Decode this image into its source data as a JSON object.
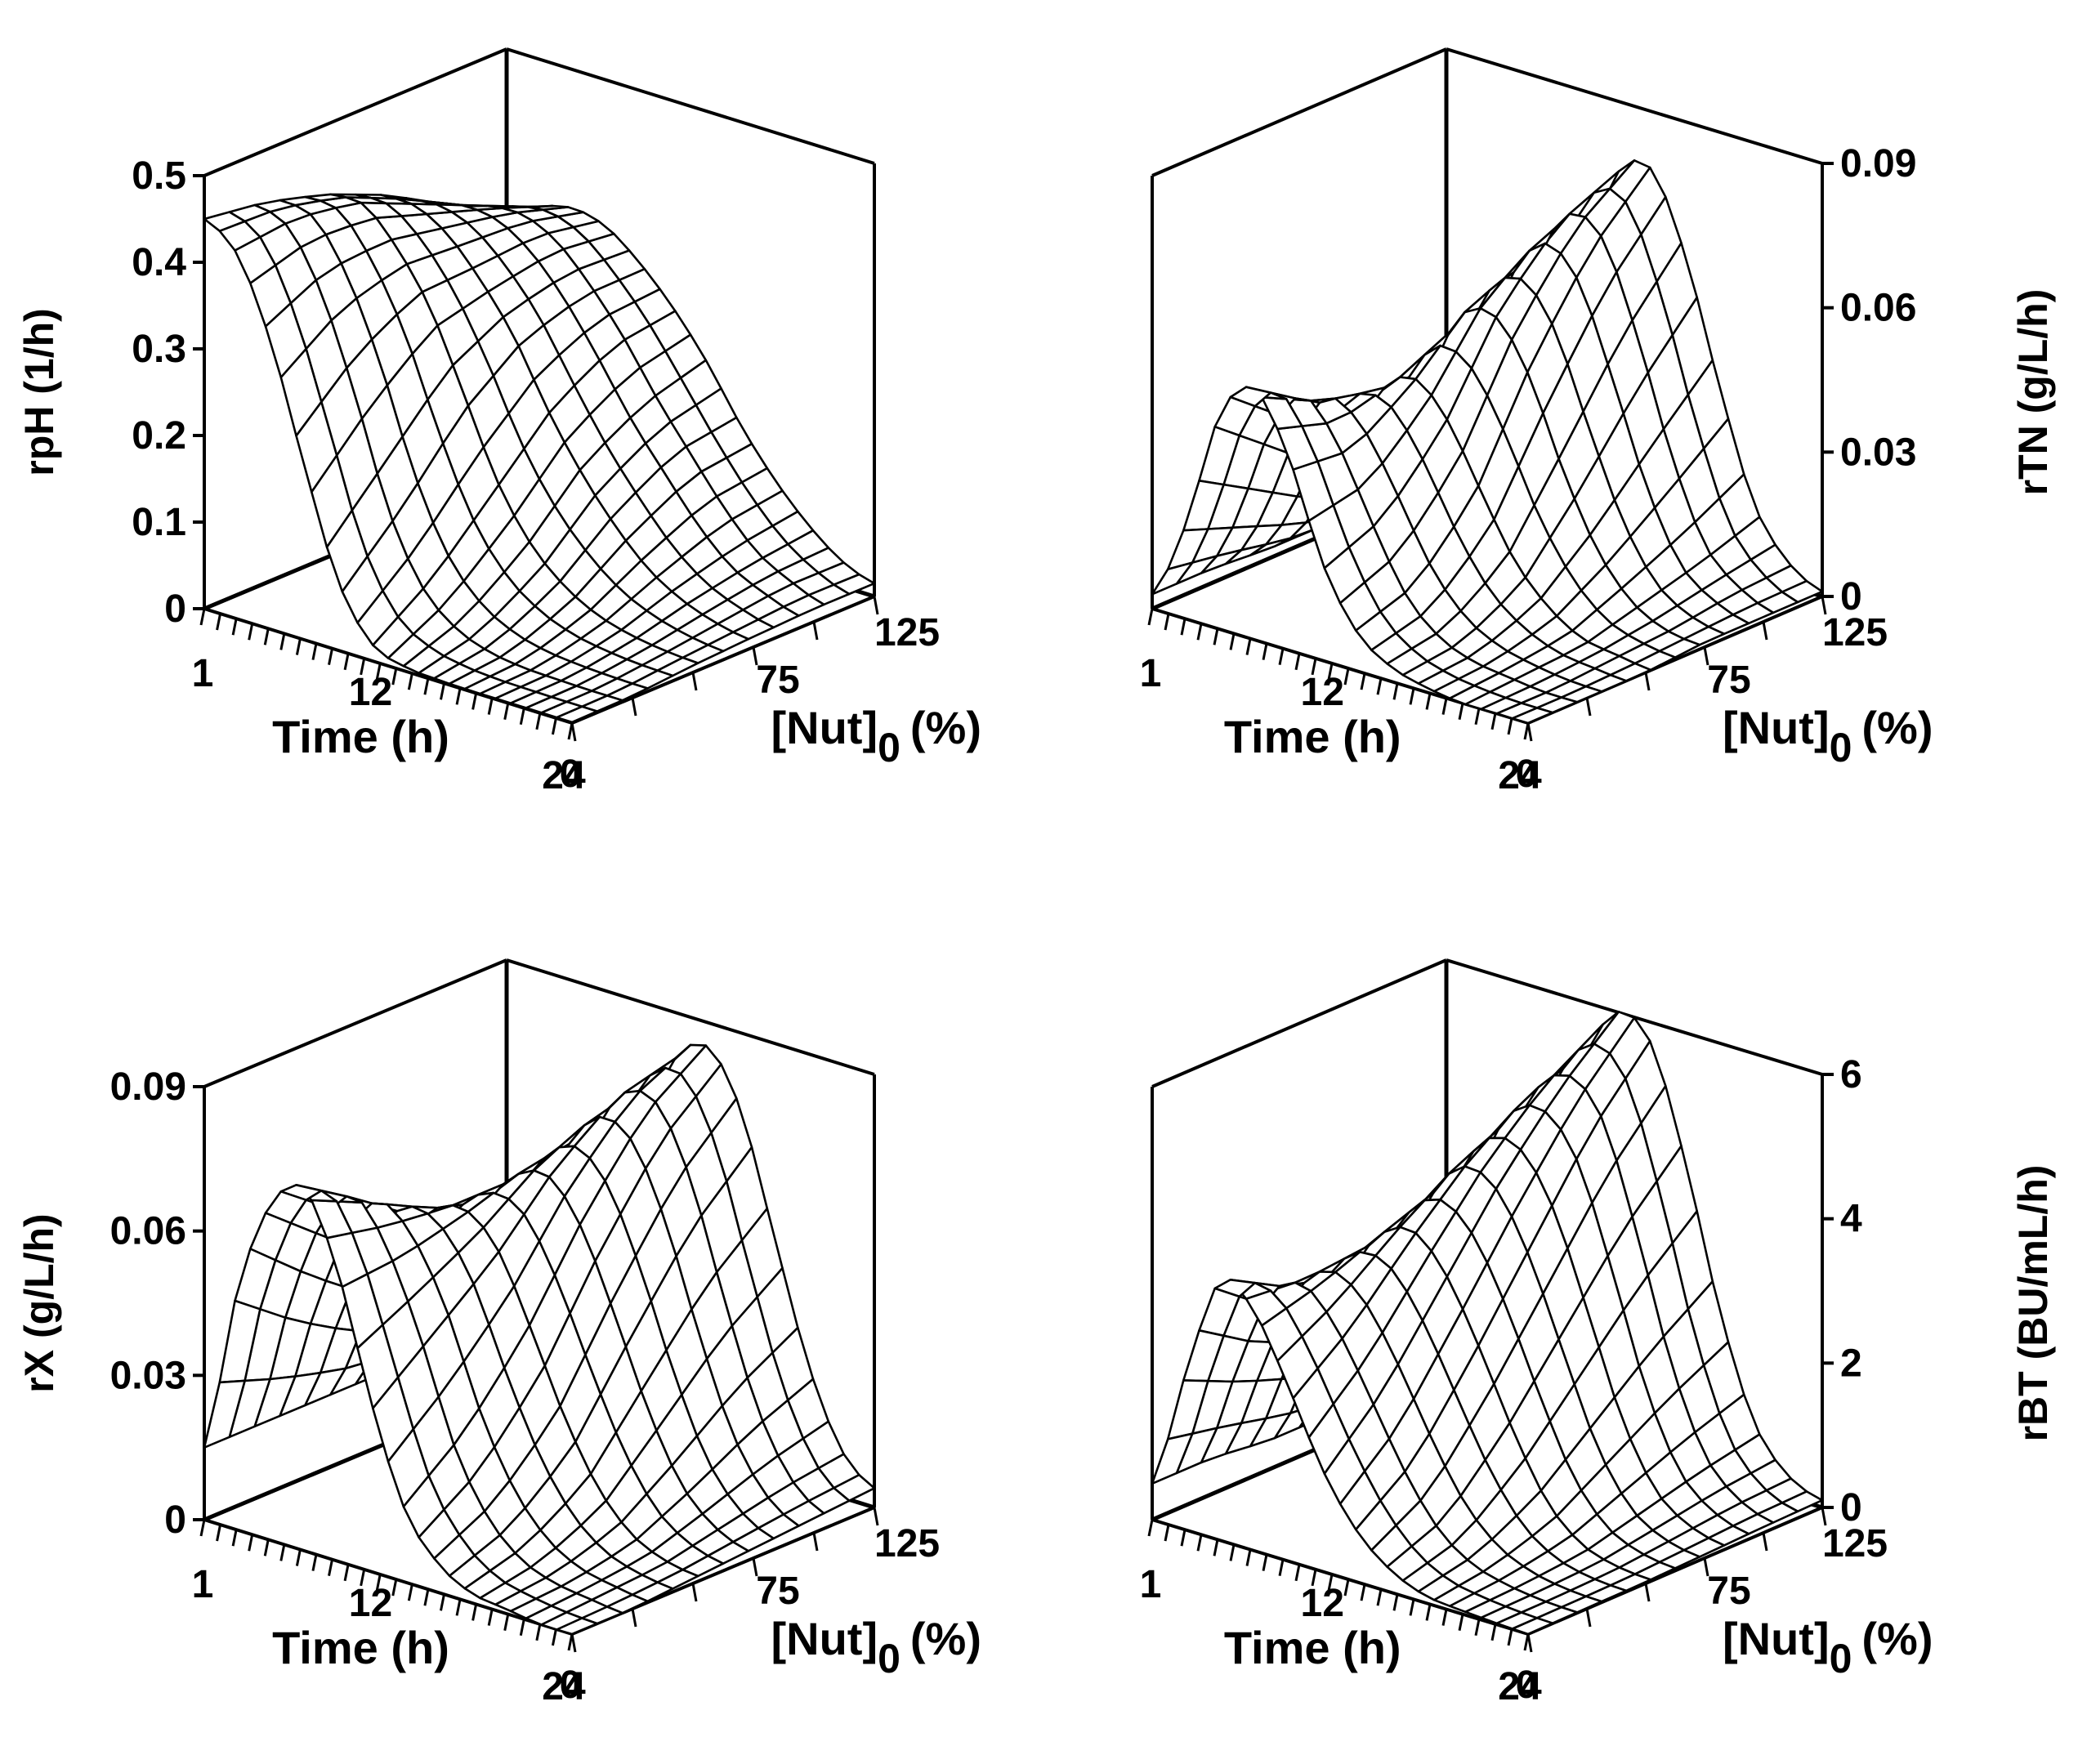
{
  "chart_data": [
    {
      "type": "surface3d",
      "id": "rph",
      "zlabel": "rpH (1/h)",
      "zlabel_side": "left",
      "ztick_side": "left",
      "zlim": [
        0,
        0.5
      ],
      "zticks": [
        "0",
        "0.1",
        "0.2",
        "0.3",
        "0.4",
        "0.5"
      ],
      "xlabel": "Time (h)",
      "xlim": [
        1,
        24
      ],
      "xtick_labels": [
        "1",
        "12",
        "24"
      ],
      "ylabel_main": "[Nut]",
      "ylabel_sub": "0",
      "ylabel_tail": "(%)",
      "ylim": [
        0,
        125
      ],
      "ytick_labels": [
        "0",
        "75",
        "125"
      ],
      "surface": {
        "rows": [
          {
            "nut": 0,
            "values": [
              0.45,
              0.42,
              0.33,
              0.2,
              0.08,
              0.02,
              0.005,
              0.002,
              0.001,
              0.001,
              0.001,
              0.001
            ]
          },
          {
            "nut": 25,
            "values": [
              0.44,
              0.43,
              0.37,
              0.27,
              0.15,
              0.07,
              0.03,
              0.012,
              0.005,
              0.003,
              0.002,
              0.002
            ]
          },
          {
            "nut": 50,
            "values": [
              0.42,
              0.42,
              0.38,
              0.32,
              0.23,
              0.14,
              0.08,
              0.045,
              0.025,
              0.015,
              0.01,
              0.008
            ]
          },
          {
            "nut": 75,
            "values": [
              0.39,
              0.39,
              0.37,
              0.33,
              0.28,
              0.21,
              0.15,
              0.1,
              0.06,
              0.035,
              0.02,
              0.012
            ]
          },
          {
            "nut": 100,
            "values": [
              0.35,
              0.36,
              0.36,
              0.34,
              0.3,
              0.25,
              0.19,
              0.14,
              0.09,
              0.05,
              0.03,
              0.015
            ]
          },
          {
            "nut": 125,
            "values": [
              0.31,
              0.33,
              0.34,
              0.33,
              0.3,
              0.26,
              0.21,
              0.15,
              0.1,
              0.06,
              0.03,
              0.015
            ]
          }
        ]
      }
    },
    {
      "type": "surface3d",
      "id": "rtn",
      "zlabel": "rTN (g/L/h)",
      "zlabel_side": "right",
      "ztick_side": "right",
      "zlim": [
        0,
        0.09
      ],
      "zticks": [
        "0",
        "0.03",
        "0.06",
        "0.09"
      ],
      "xlabel": "Time (h)",
      "xlim": [
        1,
        24
      ],
      "xtick_labels": [
        "1",
        "12",
        "24"
      ],
      "ylabel_main": "[Nut]",
      "ylabel_sub": "0",
      "ylabel_tail": "(%)",
      "ylim": [
        0,
        125
      ],
      "ytick_labels": [
        "0",
        "75",
        "125"
      ],
      "surface": {
        "rows": [
          {
            "nut": 0,
            "values": [
              0.003,
              0.02,
              0.045,
              0.052,
              0.04,
              0.02,
              0.008,
              0.003,
              0.001,
              0.0,
              0.0,
              0.0
            ]
          },
          {
            "nut": 25,
            "values": [
              0.003,
              0.015,
              0.035,
              0.045,
              0.038,
              0.025,
              0.012,
              0.005,
              0.002,
              0.001,
              0.0,
              0.0
            ]
          },
          {
            "nut": 50,
            "values": [
              0.002,
              0.01,
              0.025,
              0.04,
              0.045,
              0.038,
              0.025,
              0.013,
              0.006,
              0.002,
              0.001,
              0.0
            ]
          },
          {
            "nut": 75,
            "values": [
              0.002,
              0.008,
              0.02,
              0.038,
              0.055,
              0.058,
              0.048,
              0.03,
              0.015,
              0.006,
              0.002,
              0.001
            ]
          },
          {
            "nut": 100,
            "values": [
              0.002,
              0.007,
              0.018,
              0.036,
              0.058,
              0.07,
              0.066,
              0.048,
              0.026,
              0.01,
              0.004,
              0.001
            ]
          },
          {
            "nut": 125,
            "values": [
              0.002,
              0.006,
              0.015,
              0.032,
              0.055,
              0.075,
              0.078,
              0.062,
              0.037,
              0.015,
              0.005,
              0.001
            ]
          }
        ]
      }
    },
    {
      "type": "surface3d",
      "id": "rx",
      "zlabel": "rX (g/L/h)",
      "zlabel_side": "left",
      "ztick_side": "left",
      "zlim": [
        0,
        0.09
      ],
      "zticks": [
        "0",
        "0.03",
        "0.06",
        "0.09"
      ],
      "xlabel": "Time (h)",
      "xlim": [
        1,
        24
      ],
      "xtick_labels": [
        "1",
        "12",
        "24"
      ],
      "ylabel_main": "[Nut]",
      "ylabel_sub": "0",
      "ylabel_tail": "(%)",
      "ylim": [
        0,
        125
      ],
      "ytick_labels": [
        "0",
        "75",
        "125"
      ],
      "surface": {
        "rows": [
          {
            "nut": 0,
            "values": [
              0.015,
              0.05,
              0.07,
              0.075,
              0.06,
              0.035,
              0.015,
              0.006,
              0.002,
              0.001,
              0.0,
              0.0
            ]
          },
          {
            "nut": 25,
            "values": [
              0.015,
              0.04,
              0.06,
              0.068,
              0.06,
              0.045,
              0.025,
              0.012,
              0.005,
              0.002,
              0.001,
              0.0
            ]
          },
          {
            "nut": 50,
            "values": [
              0.015,
              0.032,
              0.05,
              0.06,
              0.062,
              0.055,
              0.04,
              0.024,
              0.012,
              0.005,
              0.002,
              0.001
            ]
          },
          {
            "nut": 75,
            "values": [
              0.015,
              0.028,
              0.042,
              0.055,
              0.065,
              0.068,
              0.06,
              0.044,
              0.026,
              0.012,
              0.005,
              0.002
            ]
          },
          {
            "nut": 100,
            "values": [
              0.015,
              0.025,
              0.038,
              0.05,
              0.066,
              0.077,
              0.076,
              0.062,
              0.04,
              0.02,
              0.008,
              0.003
            ]
          },
          {
            "nut": 125,
            "values": [
              0.015,
              0.022,
              0.032,
              0.045,
              0.063,
              0.08,
              0.085,
              0.074,
              0.05,
              0.026,
              0.01,
              0.004
            ]
          }
        ]
      }
    },
    {
      "type": "surface3d",
      "id": "rbt",
      "zlabel": "rBT (BU/mL/h)",
      "zlabel_side": "right",
      "ztick_side": "right",
      "zlim": [
        0,
        6
      ],
      "zticks": [
        "0",
        "2",
        "4",
        "6"
      ],
      "xlabel": "Time (h)",
      "xlim": [
        1,
        24
      ],
      "xtick_labels": [
        "1",
        "12",
        "24"
      ],
      "ylabel_main": "[Nut]",
      "ylabel_sub": "0",
      "ylabel_tail": "(%)",
      "ylim": [
        0,
        125
      ],
      "ytick_labels": [
        "0",
        "75",
        "125"
      ],
      "surface": {
        "rows": [
          {
            "nut": 0,
            "values": [
              0.5,
              2.2,
              3.6,
              3.3,
              2.4,
              1.4,
              0.7,
              0.3,
              0.1,
              0.05,
              0.02,
              0.0
            ]
          },
          {
            "nut": 25,
            "values": [
              0.5,
              1.8,
              3.0,
              3.4,
              3.0,
              2.2,
              1.3,
              0.6,
              0.25,
              0.1,
              0.03,
              0.01
            ]
          },
          {
            "nut": 50,
            "values": [
              0.4,
              1.5,
              2.8,
              3.6,
              3.8,
              3.3,
              2.4,
              1.4,
              0.6,
              0.2,
              0.06,
              0.02
            ]
          },
          {
            "nut": 75,
            "values": [
              0.4,
              1.3,
              2.6,
              3.8,
              4.5,
              4.4,
              3.6,
              2.4,
              1.2,
              0.45,
              0.15,
              0.05
            ]
          },
          {
            "nut": 100,
            "values": [
              0.4,
              1.2,
              2.5,
              3.9,
              5.0,
              5.3,
              4.8,
              3.4,
              1.8,
              0.7,
              0.25,
              0.08
            ]
          },
          {
            "nut": 125,
            "values": [
              0.4,
              1.1,
              2.4,
              3.9,
              5.2,
              6.0,
              5.7,
              4.2,
              2.3,
              0.9,
              0.3,
              0.1
            ]
          }
        ]
      }
    }
  ]
}
